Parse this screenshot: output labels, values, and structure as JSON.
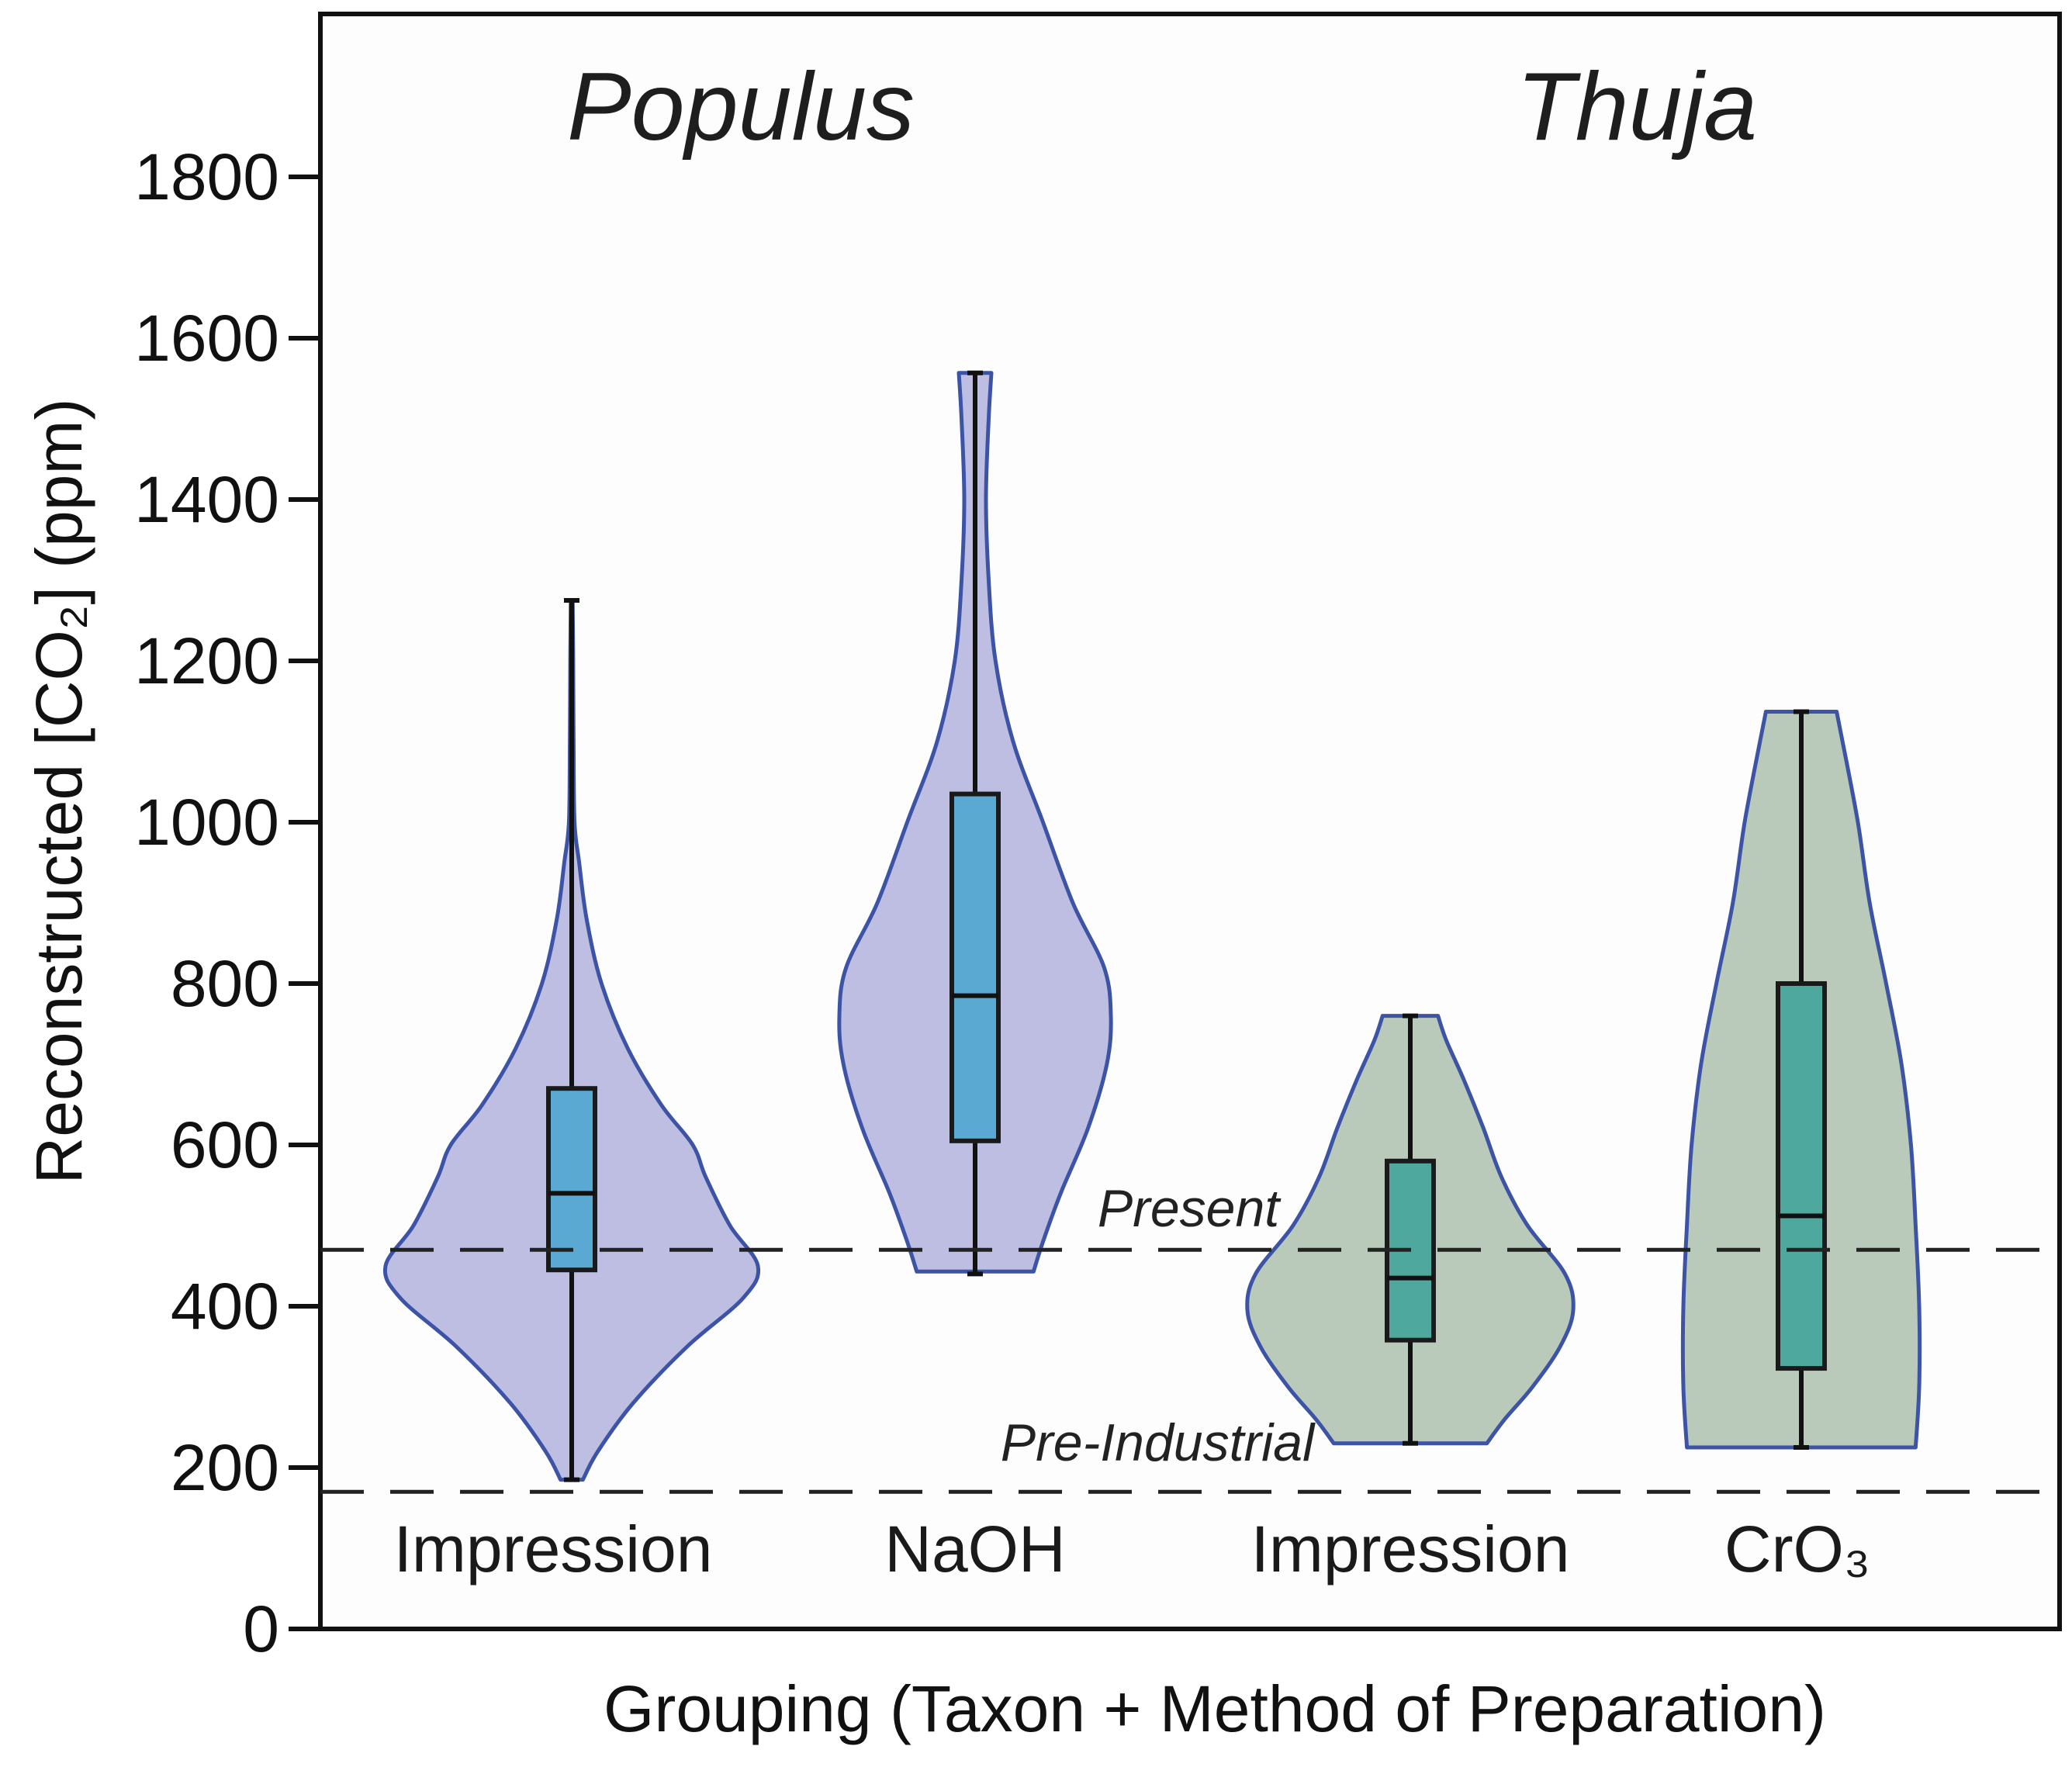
{
  "chart_data": {
    "type": "violin",
    "title": "",
    "xlabel": "Grouping (Taxon + Method of Preparation)",
    "ylabel": "Reconstructed [CO₂] (ppm)",
    "ylim": [
      0,
      2000
    ],
    "yticks": [
      0,
      200,
      400,
      600,
      800,
      1000,
      1200,
      1400,
      1600,
      1800
    ],
    "taxa": [
      {
        "name": "Populus",
        "groups": [
          0,
          1
        ]
      },
      {
        "name": "Thuja",
        "groups": [
          2,
          3
        ]
      }
    ],
    "groups": [
      {
        "label": "Impression",
        "taxon": "Populus",
        "min": 185,
        "q1": 445,
        "median": 540,
        "q3": 670,
        "max": 1275,
        "density": [
          [
            185,
            0.06
          ],
          [
            220,
            0.14
          ],
          [
            280,
            0.33
          ],
          [
            350,
            0.62
          ],
          [
            410,
            0.92
          ],
          [
            450,
            1.0
          ],
          [
            500,
            0.85
          ],
          [
            560,
            0.72
          ],
          [
            600,
            0.65
          ],
          [
            650,
            0.48
          ],
          [
            720,
            0.3
          ],
          [
            800,
            0.16
          ],
          [
            880,
            0.08
          ],
          [
            950,
            0.04
          ],
          [
            1000,
            0.015
          ],
          [
            1100,
            0.01
          ],
          [
            1200,
            0.008
          ],
          [
            1275,
            0.005
          ]
        ]
      },
      {
        "label": "NaOH",
        "taxon": "Populus",
        "min": 440,
        "q1": 605,
        "median": 785,
        "q3": 1035,
        "max": 1557,
        "density": [
          [
            443,
            0.43
          ],
          [
            480,
            0.5
          ],
          [
            540,
            0.63
          ],
          [
            620,
            0.83
          ],
          [
            700,
            0.97
          ],
          [
            760,
            1.0
          ],
          [
            820,
            0.95
          ],
          [
            900,
            0.72
          ],
          [
            1000,
            0.5
          ],
          [
            1100,
            0.28
          ],
          [
            1200,
            0.15
          ],
          [
            1300,
            0.1
          ],
          [
            1400,
            0.08
          ],
          [
            1500,
            0.1
          ],
          [
            1557,
            0.12
          ]
        ]
      },
      {
        "label": "Impression",
        "taxon": "Thuja",
        "min": 230,
        "q1": 358,
        "median": 435,
        "q3": 580,
        "max": 760,
        "density": [
          [
            230,
            0.47
          ],
          [
            260,
            0.58
          ],
          [
            300,
            0.75
          ],
          [
            350,
            0.92
          ],
          [
            395,
            1.0
          ],
          [
            440,
            0.95
          ],
          [
            500,
            0.72
          ],
          [
            560,
            0.56
          ],
          [
            620,
            0.45
          ],
          [
            680,
            0.33
          ],
          [
            730,
            0.22
          ],
          [
            760,
            0.17
          ]
        ]
      },
      {
        "label": "CrO₃",
        "taxon": "Thuja",
        "min": 225,
        "q1": 323,
        "median": 512,
        "q3": 800,
        "max": 1137,
        "density": [
          [
            225,
            0.97
          ],
          [
            300,
            1.0
          ],
          [
            400,
            1.0
          ],
          [
            500,
            0.97
          ],
          [
            600,
            0.93
          ],
          [
            700,
            0.85
          ],
          [
            800,
            0.72
          ],
          [
            900,
            0.58
          ],
          [
            1000,
            0.48
          ],
          [
            1100,
            0.35
          ],
          [
            1137,
            0.3
          ]
        ]
      }
    ],
    "reference_lines": [
      {
        "label": "Present",
        "value": 470
      },
      {
        "label": "Pre-Industrial",
        "value": 170
      }
    ],
    "colors": {
      "populus_violin": "#bdbee2",
      "thuja_violin": "#b9c9ba",
      "violin_outline": "#3d54a6",
      "populus_box": "#5aa9d2",
      "thuja_box": "#4fa89d",
      "frame": "#111111",
      "reference_line": "#222222"
    }
  }
}
